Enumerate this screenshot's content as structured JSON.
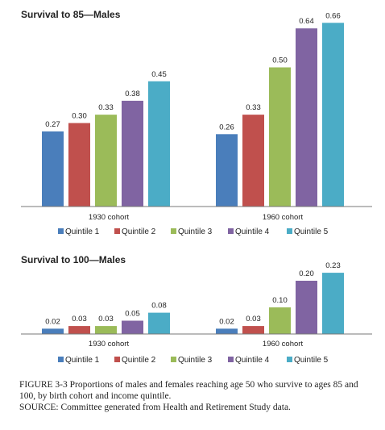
{
  "chart_data": [
    {
      "type": "bar",
      "title": "Survival to 85—Males",
      "categories": [
        "1930 cohort",
        "1960 cohort"
      ],
      "ylim": [
        0,
        0.7
      ],
      "series": [
        {
          "name": "Quintile 1",
          "color": "#4a7ebb",
          "values": [
            0.27,
            0.26
          ],
          "labels": [
            "0.27",
            "0.26"
          ]
        },
        {
          "name": "Quintile 2",
          "color": "#c0504d",
          "values": [
            0.3,
            0.33
          ],
          "labels": [
            "0.30",
            "0.33"
          ]
        },
        {
          "name": "Quintile 3",
          "color": "#9bbb59",
          "values": [
            0.33,
            0.5
          ],
          "labels": [
            "0.33",
            "0.50"
          ]
        },
        {
          "name": "Quintile 4",
          "color": "#8064a2",
          "values": [
            0.38,
            0.64
          ],
          "labels": [
            "0.38",
            "0.64"
          ]
        },
        {
          "name": "Quintile 5",
          "color": "#4bacc6",
          "values": [
            0.45,
            0.66
          ],
          "labels": [
            "0.45",
            "0.66"
          ]
        }
      ]
    },
    {
      "type": "bar",
      "title": "Survival to 100—Males",
      "categories": [
        "1930 cohort",
        "1960 cohort"
      ],
      "ylim": [
        0,
        0.25
      ],
      "series": [
        {
          "name": "Quintile 1",
          "color": "#4a7ebb",
          "values": [
            0.02,
            0.02
          ],
          "labels": [
            "0.02",
            "0.02"
          ]
        },
        {
          "name": "Quintile 2",
          "color": "#c0504d",
          "values": [
            0.03,
            0.03
          ],
          "labels": [
            "0.03",
            "0.03"
          ]
        },
        {
          "name": "Quintile 3",
          "color": "#9bbb59",
          "values": [
            0.03,
            0.1
          ],
          "labels": [
            "0.03",
            "0.10"
          ]
        },
        {
          "name": "Quintile 4",
          "color": "#8064a2",
          "values": [
            0.05,
            0.2
          ],
          "labels": [
            "0.05",
            "0.20"
          ]
        },
        {
          "name": "Quintile 5",
          "color": "#4bacc6",
          "values": [
            0.08,
            0.23
          ],
          "labels": [
            "0.08",
            "0.23"
          ]
        }
      ]
    }
  ],
  "caption": {
    "figure_number": "FIGURE 3-3",
    "text": "Proportions of males and females reaching age 50 who survive to ages 85 and 100, by birth cohort and income quintile.",
    "source": "SOURCE: Committee generated from Health and Retirement Study data."
  }
}
